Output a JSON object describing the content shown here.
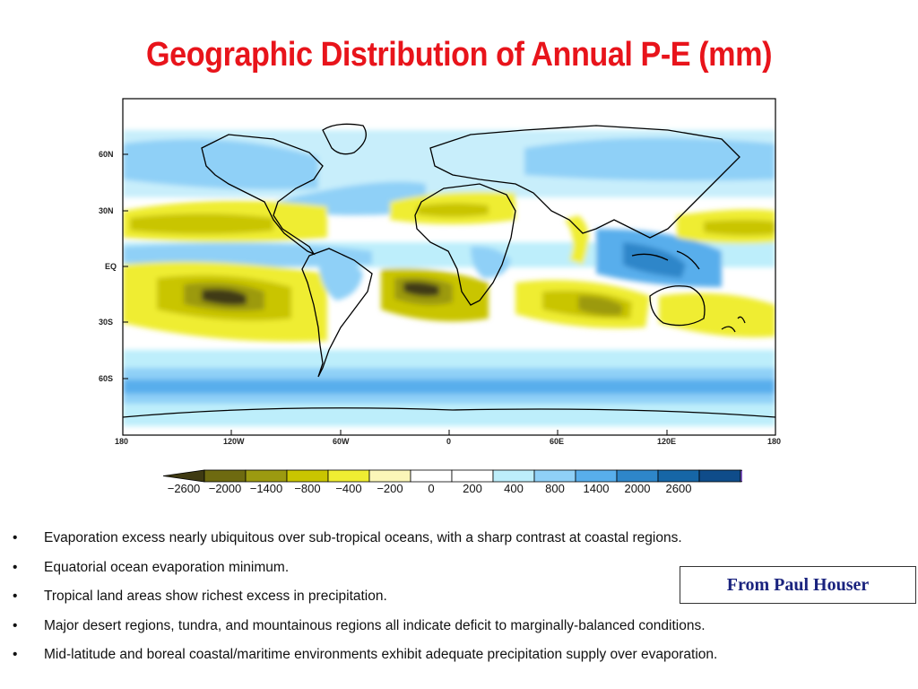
{
  "title": "Geographic Distribution of Annual P-E (mm)",
  "map": {
    "lat_labels": [
      "60N",
      "30N",
      "EQ",
      "30S",
      "60S"
    ],
    "lon_labels": [
      "180",
      "120W",
      "60W",
      "0",
      "60E",
      "120E",
      "180"
    ]
  },
  "colorbar": {
    "tick_labels": [
      "−2600",
      "−2000",
      "−1400",
      "−800",
      "−400",
      "−200",
      "0",
      "200",
      "400",
      "800",
      "1400",
      "2000",
      "2600"
    ],
    "colors": [
      "#3f3a12",
      "#6e6a10",
      "#9c9a10",
      "#c9c500",
      "#efed32",
      "#fbf6b8",
      "#ffffff",
      "#ffffff",
      "#bdeefb",
      "#8fd0f7",
      "#58aeec",
      "#2e86c9",
      "#1666a6",
      "#0f4c8a",
      "#8b62d6"
    ]
  },
  "bullets": [
    "Evaporation excess nearly ubiquitous over sub-tropical oceans, with a sharp contrast at coastal regions.",
    "Equatorial ocean evaporation minimum.",
    "Tropical land areas show richest excess in precipitation.",
    "Major desert regions, tundra, and mountainous regions all indicate deficit to marginally-balanced conditions.",
    "Mid-latitude and boreal coastal/maritime environments exhibit adequate precipitation supply over evaporation."
  ],
  "bullet_marker": "•",
  "credit": "From Paul Houser"
}
